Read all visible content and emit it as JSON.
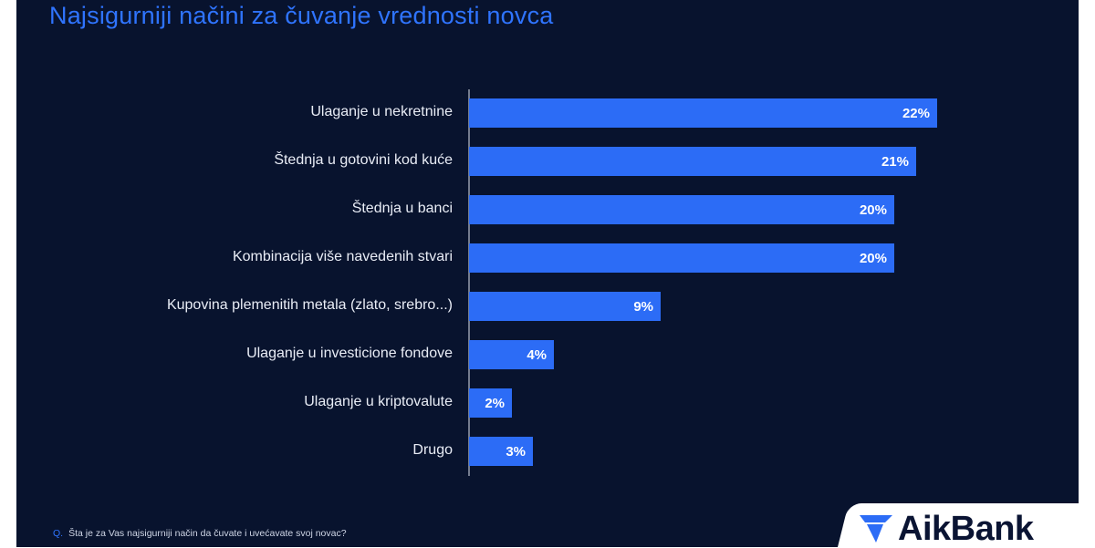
{
  "title": "Najsigurniji načini za čuvanje vrednosti novca",
  "footnote": {
    "prefix": "Q.",
    "text": "Šta je za Vas najsigurniji način da čuvate i uvećavate svoj novac?"
  },
  "logo": {
    "text": "AikBank",
    "icon": "aikbank-logo-icon"
  },
  "colors": {
    "background": "#08132e",
    "bar": "#2c6cf6",
    "title": "#2f74ff"
  },
  "chart_data": {
    "type": "bar",
    "orientation": "horizontal",
    "title": "Najsigurniji načini za čuvanje vrednosti novca",
    "categories": [
      "Ulaganje u nekretnine",
      "Štednja u gotovini kod kuće",
      "Štednja u banci",
      "Kombinacija više navedenih stvari",
      "Kupovina plemenitih metala (zlato, srebro...)",
      "Ulaganje u investicione fondove",
      "Ulaganje u kriptovalute",
      "Drugo"
    ],
    "values": [
      22,
      21,
      20,
      20,
      9,
      4,
      2,
      3
    ],
    "value_labels": [
      "22%",
      "21%",
      "20%",
      "20%",
      "9%",
      "4%",
      "2%",
      "3%"
    ],
    "xlim": [
      0,
      22
    ],
    "xlabel": "",
    "ylabel": "",
    "grid": false,
    "legend": "none"
  }
}
